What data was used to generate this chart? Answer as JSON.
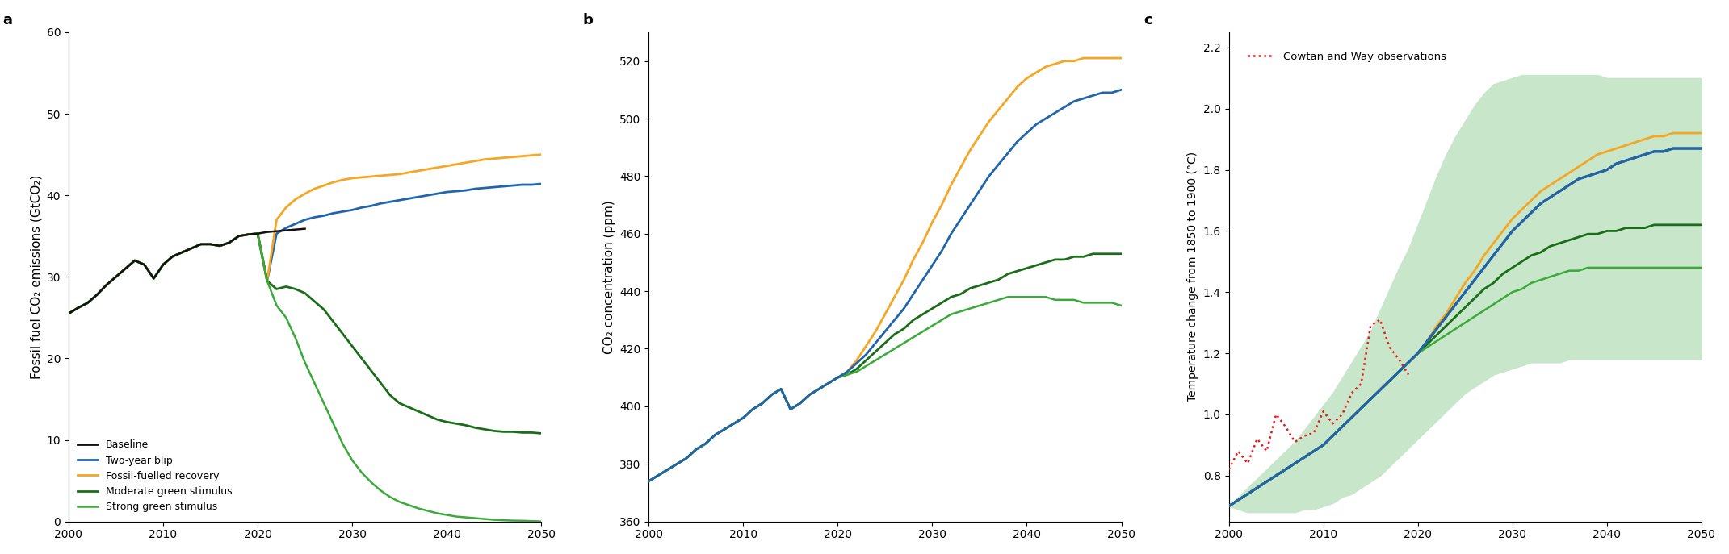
{
  "panel_a": {
    "title": "a",
    "ylabel": "Fossil fuel CO₂ emissions (GtCO₂)",
    "xlim": [
      2000,
      2050
    ],
    "ylim": [
      0,
      60
    ],
    "yticks": [
      0,
      10,
      20,
      30,
      40,
      50,
      60
    ],
    "xticks": [
      2000,
      2010,
      2020,
      2030,
      2040,
      2050
    ],
    "history_x": [
      2000,
      2001,
      2002,
      2003,
      2004,
      2005,
      2006,
      2007,
      2008,
      2009,
      2010,
      2011,
      2012,
      2013,
      2014,
      2015,
      2016,
      2017,
      2018,
      2019,
      2020
    ],
    "history_y": [
      25.5,
      26.2,
      26.8,
      27.8,
      29.0,
      30.0,
      31.0,
      32.0,
      31.5,
      29.8,
      31.5,
      32.5,
      33.0,
      33.5,
      34.0,
      34.0,
      33.8,
      34.2,
      35.0,
      35.2,
      35.3
    ],
    "baseline_end_x": [
      2020,
      2021,
      2022,
      2023,
      2024,
      2025
    ],
    "baseline_end_y": [
      35.3,
      35.5,
      35.6,
      35.7,
      35.8,
      35.9
    ],
    "two_year_blip_x": [
      2020,
      2021,
      2022,
      2023,
      2024,
      2025,
      2026,
      2027,
      2028,
      2029,
      2030,
      2031,
      2032,
      2033,
      2034,
      2035,
      2036,
      2037,
      2038,
      2039,
      2040,
      2041,
      2042,
      2043,
      2044,
      2045,
      2046,
      2047,
      2048,
      2049,
      2050
    ],
    "two_year_blip_y": [
      35.3,
      29.5,
      35.3,
      36.0,
      36.5,
      37.0,
      37.3,
      37.5,
      37.8,
      38.0,
      38.2,
      38.5,
      38.7,
      39.0,
      39.2,
      39.4,
      39.6,
      39.8,
      40.0,
      40.2,
      40.4,
      40.5,
      40.6,
      40.8,
      40.9,
      41.0,
      41.1,
      41.2,
      41.3,
      41.3,
      41.4
    ],
    "fossil_fuelled_x": [
      2020,
      2021,
      2022,
      2023,
      2024,
      2025,
      2026,
      2027,
      2028,
      2029,
      2030,
      2031,
      2032,
      2033,
      2034,
      2035,
      2036,
      2037,
      2038,
      2039,
      2040,
      2041,
      2042,
      2043,
      2044,
      2045,
      2046,
      2047,
      2048,
      2049,
      2050
    ],
    "fossil_fuelled_y": [
      35.3,
      29.5,
      37.0,
      38.5,
      39.5,
      40.2,
      40.8,
      41.2,
      41.6,
      41.9,
      42.1,
      42.2,
      42.3,
      42.4,
      42.5,
      42.6,
      42.8,
      43.0,
      43.2,
      43.4,
      43.6,
      43.8,
      44.0,
      44.2,
      44.4,
      44.5,
      44.6,
      44.7,
      44.8,
      44.9,
      45.0
    ],
    "moderate_green_x": [
      2020,
      2021,
      2022,
      2023,
      2024,
      2025,
      2026,
      2027,
      2028,
      2029,
      2030,
      2031,
      2032,
      2033,
      2034,
      2035,
      2036,
      2037,
      2038,
      2039,
      2040,
      2041,
      2042,
      2043,
      2044,
      2045,
      2046,
      2047,
      2048,
      2049,
      2050
    ],
    "moderate_green_y": [
      35.3,
      29.5,
      28.5,
      28.8,
      28.5,
      28.0,
      27.0,
      26.0,
      24.5,
      23.0,
      21.5,
      20.0,
      18.5,
      17.0,
      15.5,
      14.5,
      14.0,
      13.5,
      13.0,
      12.5,
      12.2,
      12.0,
      11.8,
      11.5,
      11.3,
      11.1,
      11.0,
      11.0,
      10.9,
      10.9,
      10.8
    ],
    "strong_green_x": [
      2020,
      2021,
      2022,
      2023,
      2024,
      2025,
      2026,
      2027,
      2028,
      2029,
      2030,
      2031,
      2032,
      2033,
      2034,
      2035,
      2036,
      2037,
      2038,
      2039,
      2040,
      2041,
      2042,
      2043,
      2044,
      2045,
      2046,
      2047,
      2048,
      2049,
      2050
    ],
    "strong_green_y": [
      35.3,
      29.5,
      26.5,
      25.0,
      22.5,
      19.5,
      17.0,
      14.5,
      12.0,
      9.5,
      7.5,
      6.0,
      4.8,
      3.8,
      3.0,
      2.4,
      2.0,
      1.6,
      1.3,
      1.0,
      0.8,
      0.6,
      0.5,
      0.4,
      0.3,
      0.2,
      0.15,
      0.1,
      0.08,
      0.04,
      0.0
    ],
    "colors": {
      "black": "#111111",
      "blue": "#2166ac",
      "orange": "#f5a623",
      "dark_green": "#1a6e1a",
      "medium_green": "#3aaa3a"
    },
    "legend_items": [
      {
        "label": "Baseline",
        "color": "#111111"
      },
      {
        "label": "Two-year blip",
        "color": "#2166ac"
      },
      {
        "label": "Fossil-fuelled recovery",
        "color": "#f5a623"
      },
      {
        "label": "Moderate green stimulus",
        "color": "#1a6e1a"
      },
      {
        "label": "Strong green stimulus",
        "color": "#3aaa3a"
      }
    ]
  },
  "panel_b": {
    "title": "b",
    "ylabel": "CO₂ concentration (ppm)",
    "xlim": [
      2000,
      2050
    ],
    "ylim": [
      360,
      530
    ],
    "yticks": [
      360,
      380,
      400,
      420,
      440,
      460,
      480,
      500,
      520
    ],
    "xticks": [
      2000,
      2010,
      2020,
      2030,
      2040,
      2050
    ],
    "x": [
      2000,
      2001,
      2002,
      2003,
      2004,
      2005,
      2006,
      2007,
      2008,
      2009,
      2010,
      2011,
      2012,
      2013,
      2014,
      2015,
      2016,
      2017,
      2018,
      2019,
      2020,
      2021,
      2022,
      2023,
      2024,
      2025,
      2026,
      2027,
      2028,
      2029,
      2030,
      2031,
      2032,
      2033,
      2034,
      2035,
      2036,
      2037,
      2038,
      2039,
      2040,
      2041,
      2042,
      2043,
      2044,
      2045,
      2046,
      2047,
      2048,
      2049,
      2050
    ],
    "baseline_y": [
      374,
      376,
      378,
      380,
      382,
      385,
      387,
      390,
      392,
      394,
      396,
      399,
      401,
      404,
      406,
      399,
      401,
      404,
      406,
      408,
      410,
      412,
      415,
      418,
      422,
      426,
      430,
      434,
      439,
      444,
      449,
      454,
      460,
      465,
      470,
      475,
      480,
      484,
      488,
      492,
      495,
      498,
      500,
      502,
      504,
      506,
      507,
      508,
      509,
      509,
      510
    ],
    "fossil_y": [
      374,
      376,
      378,
      380,
      382,
      385,
      387,
      390,
      392,
      394,
      396,
      399,
      401,
      404,
      406,
      399,
      401,
      404,
      406,
      408,
      410,
      412,
      416,
      421,
      426,
      432,
      438,
      444,
      451,
      457,
      464,
      470,
      477,
      483,
      489,
      494,
      499,
      503,
      507,
      511,
      514,
      516,
      518,
      519,
      520,
      520,
      521,
      521,
      521,
      521,
      521
    ],
    "moderate_y": [
      374,
      376,
      378,
      380,
      382,
      385,
      387,
      390,
      392,
      394,
      396,
      399,
      401,
      404,
      406,
      399,
      401,
      404,
      406,
      408,
      410,
      411,
      413,
      416,
      419,
      422,
      425,
      427,
      430,
      432,
      434,
      436,
      438,
      439,
      441,
      442,
      443,
      444,
      446,
      447,
      448,
      449,
      450,
      451,
      451,
      452,
      452,
      453,
      453,
      453,
      453
    ],
    "strong_y": [
      374,
      376,
      378,
      380,
      382,
      385,
      387,
      390,
      392,
      394,
      396,
      399,
      401,
      404,
      406,
      399,
      401,
      404,
      406,
      408,
      410,
      411,
      412,
      414,
      416,
      418,
      420,
      422,
      424,
      426,
      428,
      430,
      432,
      433,
      434,
      435,
      436,
      437,
      438,
      438,
      438,
      438,
      438,
      437,
      437,
      437,
      436,
      436,
      436,
      436,
      435
    ],
    "colors": {
      "blue": "#2166ac",
      "orange": "#f5a623",
      "dark_green": "#1a6e1a",
      "medium_green": "#3aaa3a"
    }
  },
  "panel_c": {
    "title": "c",
    "ylabel": "Temperature change from 1850 to 1900 (°C)",
    "xlim": [
      2000,
      2050
    ],
    "ylim": [
      0.65,
      2.25
    ],
    "yticks": [
      0.8,
      1.0,
      1.2,
      1.4,
      1.6,
      1.8,
      2.0,
      2.2
    ],
    "xticks": [
      2000,
      2010,
      2020,
      2030,
      2040,
      2050
    ],
    "x": [
      2000,
      2001,
      2002,
      2003,
      2004,
      2005,
      2006,
      2007,
      2008,
      2009,
      2010,
      2011,
      2012,
      2013,
      2014,
      2015,
      2016,
      2017,
      2018,
      2019,
      2020,
      2021,
      2022,
      2023,
      2024,
      2025,
      2026,
      2027,
      2028,
      2029,
      2030,
      2031,
      2032,
      2033,
      2034,
      2035,
      2036,
      2037,
      2038,
      2039,
      2040,
      2041,
      2042,
      2043,
      2044,
      2045,
      2046,
      2047,
      2048,
      2049,
      2050
    ],
    "baseline_y": [
      0.7,
      0.72,
      0.74,
      0.76,
      0.78,
      0.8,
      0.82,
      0.84,
      0.86,
      0.88,
      0.9,
      0.93,
      0.96,
      0.99,
      1.02,
      1.05,
      1.08,
      1.11,
      1.14,
      1.17,
      1.2,
      1.24,
      1.28,
      1.32,
      1.36,
      1.4,
      1.44,
      1.48,
      1.52,
      1.56,
      1.6,
      1.63,
      1.66,
      1.69,
      1.71,
      1.73,
      1.75,
      1.77,
      1.78,
      1.79,
      1.8,
      1.82,
      1.83,
      1.84,
      1.85,
      1.86,
      1.86,
      1.87,
      1.87,
      1.87,
      1.87
    ],
    "fossil_y": [
      0.7,
      0.72,
      0.74,
      0.76,
      0.78,
      0.8,
      0.82,
      0.84,
      0.86,
      0.88,
      0.9,
      0.93,
      0.96,
      0.99,
      1.02,
      1.05,
      1.08,
      1.11,
      1.14,
      1.17,
      1.2,
      1.24,
      1.29,
      1.33,
      1.38,
      1.43,
      1.47,
      1.52,
      1.56,
      1.6,
      1.64,
      1.67,
      1.7,
      1.73,
      1.75,
      1.77,
      1.79,
      1.81,
      1.83,
      1.85,
      1.86,
      1.87,
      1.88,
      1.89,
      1.9,
      1.91,
      1.91,
      1.92,
      1.92,
      1.92,
      1.92
    ],
    "moderate_y": [
      0.7,
      0.72,
      0.74,
      0.76,
      0.78,
      0.8,
      0.82,
      0.84,
      0.86,
      0.88,
      0.9,
      0.93,
      0.96,
      0.99,
      1.02,
      1.05,
      1.08,
      1.11,
      1.14,
      1.17,
      1.2,
      1.23,
      1.26,
      1.29,
      1.32,
      1.35,
      1.38,
      1.41,
      1.43,
      1.46,
      1.48,
      1.5,
      1.52,
      1.53,
      1.55,
      1.56,
      1.57,
      1.58,
      1.59,
      1.59,
      1.6,
      1.6,
      1.61,
      1.61,
      1.61,
      1.62,
      1.62,
      1.62,
      1.62,
      1.62,
      1.62
    ],
    "strong_y": [
      0.7,
      0.72,
      0.74,
      0.76,
      0.78,
      0.8,
      0.82,
      0.84,
      0.86,
      0.88,
      0.9,
      0.93,
      0.96,
      0.99,
      1.02,
      1.05,
      1.08,
      1.11,
      1.14,
      1.17,
      1.2,
      1.22,
      1.24,
      1.26,
      1.28,
      1.3,
      1.32,
      1.34,
      1.36,
      1.38,
      1.4,
      1.41,
      1.43,
      1.44,
      1.45,
      1.46,
      1.47,
      1.47,
      1.48,
      1.48,
      1.48,
      1.48,
      1.48,
      1.48,
      1.48,
      1.48,
      1.48,
      1.48,
      1.48,
      1.48,
      1.48
    ],
    "shade_upper": [
      0.7,
      0.73,
      0.76,
      0.79,
      0.82,
      0.85,
      0.88,
      0.91,
      0.95,
      0.99,
      1.03,
      1.07,
      1.12,
      1.17,
      1.22,
      1.27,
      1.34,
      1.41,
      1.48,
      1.54,
      1.62,
      1.7,
      1.78,
      1.85,
      1.91,
      1.96,
      2.01,
      2.05,
      2.08,
      2.09,
      2.1,
      2.11,
      2.11,
      2.11,
      2.11,
      2.11,
      2.11,
      2.11,
      2.11,
      2.11,
      2.1,
      2.1,
      2.1,
      2.1,
      2.1,
      2.1,
      2.1,
      2.1,
      2.1,
      2.1,
      2.1
    ],
    "shade_lower": [
      0.7,
      0.69,
      0.68,
      0.68,
      0.68,
      0.68,
      0.68,
      0.68,
      0.69,
      0.69,
      0.7,
      0.71,
      0.73,
      0.74,
      0.76,
      0.78,
      0.8,
      0.83,
      0.86,
      0.89,
      0.92,
      0.95,
      0.98,
      1.01,
      1.04,
      1.07,
      1.09,
      1.11,
      1.13,
      1.14,
      1.15,
      1.16,
      1.17,
      1.17,
      1.17,
      1.17,
      1.18,
      1.18,
      1.18,
      1.18,
      1.18,
      1.18,
      1.18,
      1.18,
      1.18,
      1.18,
      1.18,
      1.18,
      1.18,
      1.18,
      1.18
    ],
    "shade_color": "#c8e6c9",
    "cowtan_x": [
      2000,
      2001,
      2002,
      2003,
      2004,
      2005,
      2006,
      2007,
      2008,
      2009,
      2010,
      2011,
      2012,
      2013,
      2014,
      2015,
      2016,
      2017,
      2018,
      2019
    ],
    "cowtan_y": [
      0.82,
      0.88,
      0.84,
      0.92,
      0.88,
      1.0,
      0.96,
      0.91,
      0.93,
      0.94,
      1.01,
      0.97,
      1.0,
      1.07,
      1.1,
      1.29,
      1.31,
      1.22,
      1.18,
      1.13
    ],
    "cowtan_color": "#e31a1c",
    "legend_label": "Cowtan and Way observations",
    "colors": {
      "black": "#111111",
      "blue": "#2166ac",
      "orange": "#f5a623",
      "dark_green": "#1a6e1a",
      "medium_green": "#3aaa3a"
    }
  }
}
